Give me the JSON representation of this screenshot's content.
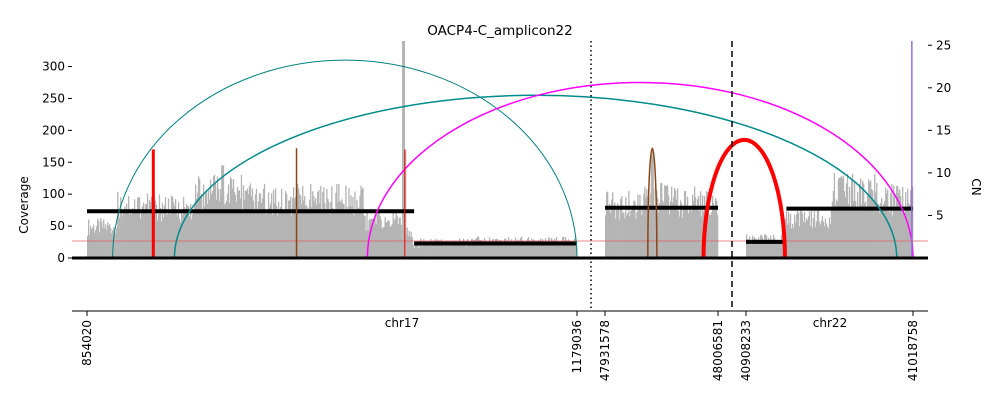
{
  "chart_data": {
    "type": "area",
    "title": "OACP4-C_amplicon22",
    "ylabel_left": "Coverage",
    "ylabel_right": "CN",
    "yticks_left": [
      0,
      50,
      100,
      150,
      200,
      250,
      300
    ],
    "yticks_right": [
      5,
      10,
      15,
      20,
      25
    ],
    "ylim_left": [
      0,
      340
    ],
    "ylim_right": [
      0,
      25.5
    ],
    "cn_baseline": 2,
    "segments": [
      {
        "chrom": "chr17",
        "start": 854020,
        "end": 1179036
      },
      {
        "chrom": "chr22",
        "start": 47931578,
        "end": 48006581
      },
      {
        "chrom": "chr22",
        "start": 40908233,
        "end": 41018758
      }
    ],
    "chrom_labels": [
      "chr17",
      "chr22"
    ],
    "position_ticks": [
      "854020",
      "1179036",
      "47931578",
      "48006581",
      "40908233",
      "41018758"
    ],
    "coverage_profile": [
      {
        "start": 854020,
        "end": 874000,
        "coverage": 50
      },
      {
        "start": 874000,
        "end": 897000,
        "coverage": 85
      },
      {
        "start": 897000,
        "end": 925000,
        "coverage": 80
      },
      {
        "start": 925000,
        "end": 960000,
        "coverage": 105
      },
      {
        "start": 960000,
        "end": 1000000,
        "coverage": 95
      },
      {
        "start": 1000000,
        "end": 1038000,
        "coverage": 95
      },
      {
        "start": 1038000,
        "end": 1062000,
        "coverage": 60
      },
      {
        "start": 1062000,
        "end": 1070000,
        "coverage": 45
      },
      {
        "start": 1070000,
        "end": 1075000,
        "coverage": 20
      },
      {
        "start": 1075000,
        "end": 1110000,
        "coverage": 25
      },
      {
        "start": 1110000,
        "end": 1179036,
        "coverage": 27
      },
      {
        "start": 47931578,
        "end": 47955000,
        "coverage": 85
      },
      {
        "start": 47955000,
        "end": 47980000,
        "coverage": 95
      },
      {
        "start": 47980000,
        "end": 48006581,
        "coverage": 90
      },
      {
        "start": 40908233,
        "end": 40934000,
        "coverage": 30
      },
      {
        "start": 40934000,
        "end": 40965000,
        "coverage": 65
      },
      {
        "start": 40965000,
        "end": 40995000,
        "coverage": 110
      },
      {
        "start": 40995000,
        "end": 41018758,
        "coverage": 95
      }
    ],
    "coverage_spikes": [
      {
        "position": 1064000,
        "coverage": 340
      },
      {
        "position": 944000,
        "coverage": 145
      },
      {
        "position": 1064800,
        "coverage": 170
      },
      {
        "position": 47963000,
        "coverage": 170
      }
    ],
    "copy_number_segments": [
      {
        "start": 854020,
        "end": 1071000,
        "cn": 5.5
      },
      {
        "start": 1071000,
        "end": 1179036,
        "cn": 1.7
      },
      {
        "start": 47931578,
        "end": 48006581,
        "cn": 5.9
      },
      {
        "start": 40908233,
        "end": 40935000,
        "cn": 1.9
      },
      {
        "start": 40935000,
        "end": 41018758,
        "cn": 5.8
      }
    ],
    "breakpoints": [
      {
        "pos1": 871000,
        "pos2": 1179036,
        "color": "#008080",
        "width": 1,
        "height": 310
      },
      {
        "pos1": 912000,
        "pos2": 41008000,
        "color": "#008b8b",
        "width": 1.5,
        "height": 255
      },
      {
        "pos1": 1040000,
        "pos2": 41018758,
        "color": "#ff00ff",
        "width": 1.5,
        "height": 275
      },
      {
        "pos1": 47997000,
        "pos2": 40934000,
        "color": "#ff0000",
        "width": 4,
        "height": 185
      },
      {
        "pos1": 898000,
        "pos2": 898000,
        "color": "#ff0000",
        "width": 3,
        "height": 170
      },
      {
        "pos1": 993000,
        "pos2": 993000,
        "color": "#8b4513",
        "width": 1.5,
        "height": 172
      },
      {
        "pos1": 1064800,
        "pos2": 1064800,
        "color": "#ff0000",
        "width": 1,
        "height": 170
      },
      {
        "pos1": 41018000,
        "pos2": 41018000,
        "color": "#9370db",
        "width": 1.5,
        "height": 340
      },
      {
        "pos1": 47960000,
        "pos2": 47966000,
        "color": "#8b4513",
        "width": 1.5,
        "height": 172
      }
    ],
    "segment_dividers": [
      {
        "between": [
          0,
          1
        ],
        "style": "dotted"
      },
      {
        "between": [
          1,
          2
        ],
        "style": "dashed"
      }
    ]
  }
}
